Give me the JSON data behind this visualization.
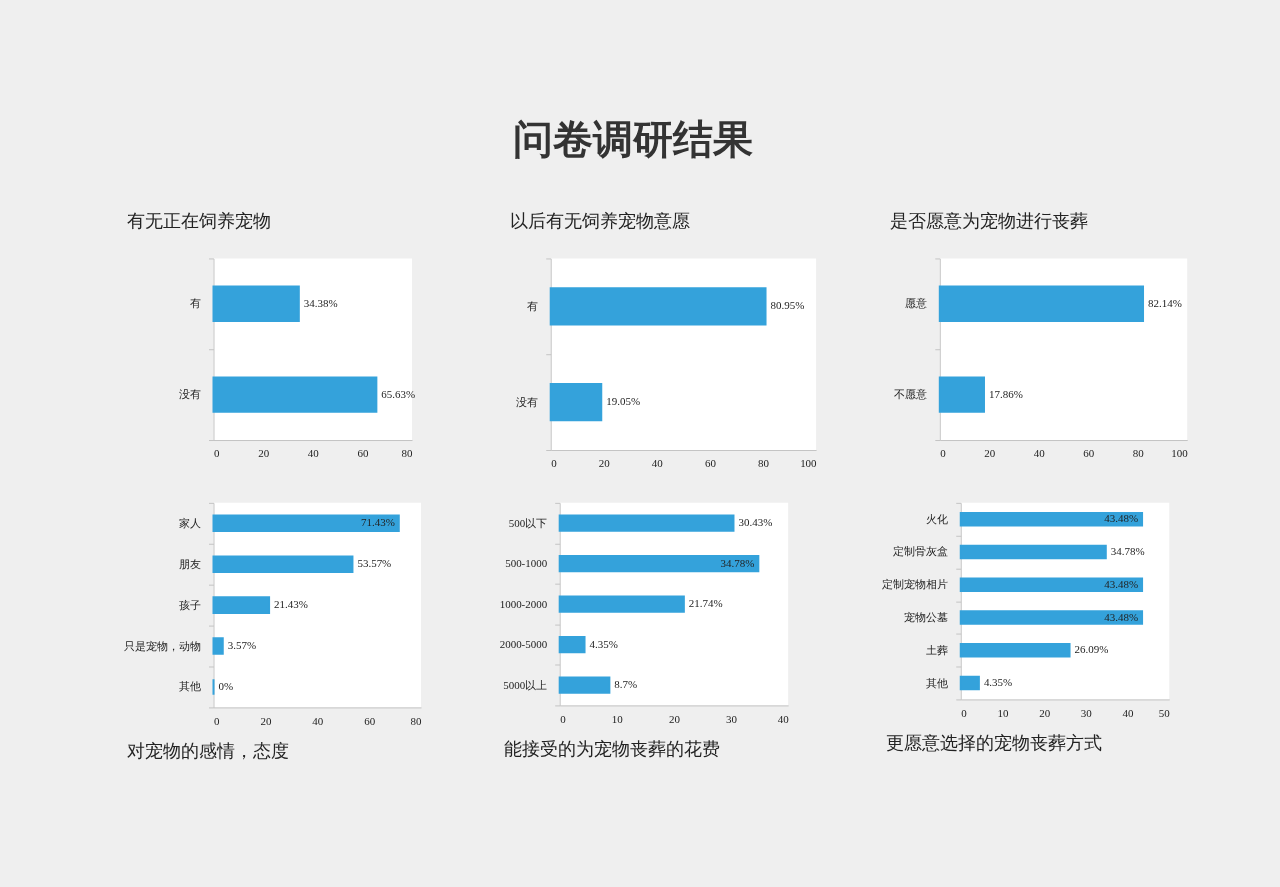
{
  "chart_data": [
    {
      "type": "other",
      "title": "问卷调研结果"
    },
    {
      "type": "bar",
      "orientation": "horizontal",
      "title": "有无正在饲养宠物",
      "categories": [
        "有",
        "没有"
      ],
      "values": [
        34.38,
        65.63
      ],
      "value_labels": [
        "34.38%",
        "65.63%"
      ],
      "color": "#34a2db",
      "xlim": [
        0,
        80
      ],
      "xticks": [
        0,
        20,
        40,
        60,
        80
      ]
    },
    {
      "type": "bar",
      "orientation": "horizontal",
      "title": "以后有无饲养宠物意愿",
      "categories": [
        "有",
        "没有"
      ],
      "values": [
        80.95,
        19.05
      ],
      "value_labels": [
        "80.95%",
        "19.05%"
      ],
      "color": "#34a2db",
      "xlim": [
        0,
        100
      ],
      "xticks": [
        0,
        20,
        40,
        60,
        80,
        100
      ]
    },
    {
      "type": "bar",
      "orientation": "horizontal",
      "title": "是否愿意为宠物进行丧葬",
      "categories": [
        "愿意",
        "不愿意"
      ],
      "values": [
        82.14,
        17.86
      ],
      "value_labels": [
        "82.14%",
        "17.86%"
      ],
      "color": "#34a2db",
      "xlim": [
        0,
        100
      ],
      "xticks": [
        0,
        20,
        40,
        60,
        80,
        100
      ]
    },
    {
      "type": "bar",
      "orientation": "horizontal",
      "title": "对宠物的感情，态度",
      "categories": [
        "家人",
        "朋友",
        "孩子",
        "只是宠物，动物",
        "其他"
      ],
      "values": [
        71.43,
        53.57,
        21.43,
        3.57,
        0
      ],
      "value_labels": [
        "71.43%",
        "53.57%",
        "21.43%",
        "3.57%",
        "0%"
      ],
      "color": "#34a2db",
      "xlim": [
        0,
        80
      ],
      "xticks": [
        0,
        20,
        40,
        60,
        80
      ]
    },
    {
      "type": "bar",
      "orientation": "horizontal",
      "title": "能接受的为宠物丧葬的花费",
      "categories": [
        "500以下",
        "500-1000",
        "1000-2000",
        "2000-5000",
        "5000以上"
      ],
      "values": [
        30.43,
        34.78,
        21.74,
        4.35,
        8.7
      ],
      "value_labels": [
        "30.43%",
        "34.78%",
        "21.74%",
        "4.35%",
        "8.7%"
      ],
      "color": "#34a2db",
      "xlim": [
        0,
        40
      ],
      "xticks": [
        0,
        10,
        20,
        30,
        40
      ]
    },
    {
      "type": "bar",
      "orientation": "horizontal",
      "title": "更愿意选择的宠物丧葬方式",
      "categories": [
        "火化",
        "定制骨灰盒",
        "定制宠物相片",
        "宠物公墓",
        "土葬",
        "其他"
      ],
      "values": [
        43.48,
        34.78,
        43.48,
        43.48,
        26.09,
        4.35
      ],
      "value_labels": [
        "43.48%",
        "34.78%",
        "43.48%",
        "43.48%",
        "26.09%",
        "4.35%"
      ],
      "color": "#34a2db",
      "xlim": [
        0,
        50
      ],
      "xticks": [
        0,
        10,
        20,
        30,
        40,
        50
      ]
    }
  ]
}
